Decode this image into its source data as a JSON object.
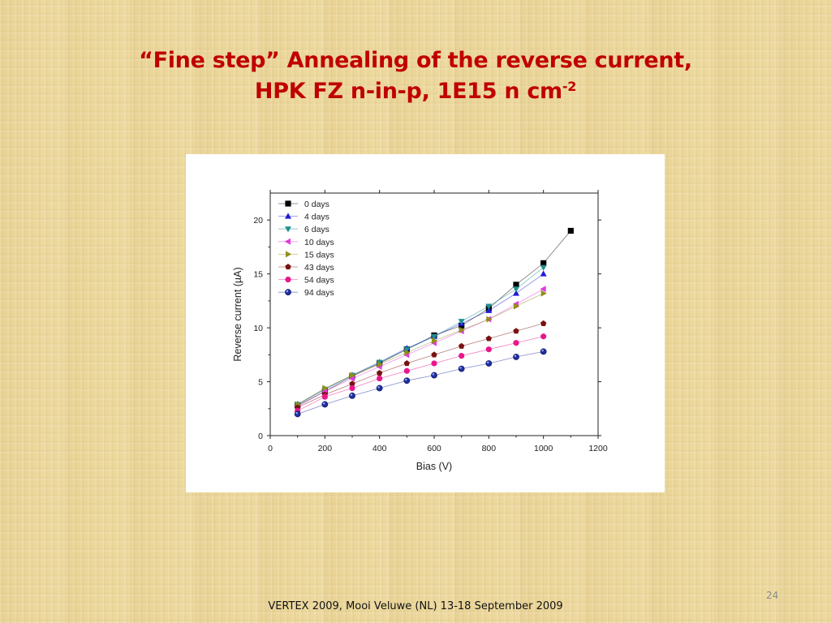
{
  "slide": {
    "title_line1": "“Fine step” Annealing of the reverse current,",
    "title_line2": "HPK FZ n-in-p, 1E15 n cm",
    "title_sup": "-2",
    "slide_number": "24",
    "footer": "VERTEX 2009, Mooi Veluwe (NL) 13-18 September 2009"
  },
  "chart_data": {
    "type": "scatter",
    "xlabel": "Bias (V)",
    "ylabel": "Reverse current (µA)",
    "xlim": [
      0,
      1200
    ],
    "ylim": [
      0,
      22.5
    ],
    "xticks": [
      0,
      200,
      400,
      600,
      800,
      1000,
      1200
    ],
    "yticks": [
      0,
      5,
      10,
      15,
      20
    ],
    "grid": false,
    "legend_position": "top-left",
    "series": [
      {
        "name": "0 days",
        "marker": "square",
        "color": "#000000",
        "x": [
          100,
          200,
          300,
          400,
          500,
          600,
          700,
          800,
          900,
          1000,
          1100
        ],
        "y": [
          2.8,
          4.1,
          5.5,
          6.7,
          8.0,
          9.3,
          10.2,
          11.8,
          14.0,
          16.0,
          19.0
        ]
      },
      {
        "name": "4 days",
        "marker": "triangle-up",
        "color": "#1c1cd6",
        "x": [
          100,
          200,
          300,
          400,
          500,
          600,
          700,
          800,
          900,
          1000
        ],
        "y": [
          2.9,
          4.3,
          5.6,
          6.8,
          8.1,
          9.2,
          10.4,
          11.6,
          13.2,
          15.0
        ]
      },
      {
        "name": "6 days",
        "marker": "triangle-down",
        "color": "#1f8f8f",
        "x": [
          100,
          200,
          300,
          400,
          500,
          600,
          700,
          800,
          900,
          1000
        ],
        "y": [
          2.9,
          4.3,
          5.6,
          6.8,
          8.0,
          9.2,
          10.6,
          12.0,
          13.6,
          15.6
        ]
      },
      {
        "name": "10 days",
        "marker": "triangle-left",
        "color": "#e23ae0",
        "x": [
          100,
          200,
          300,
          400,
          500,
          600,
          700,
          800,
          900,
          1000
        ],
        "y": [
          2.7,
          4.1,
          5.3,
          6.4,
          7.5,
          8.6,
          9.7,
          10.8,
          12.2,
          13.6
        ]
      },
      {
        "name": "15 days",
        "marker": "triangle-right",
        "color": "#8f8f1c",
        "x": [
          100,
          200,
          300,
          400,
          500,
          600,
          700,
          800,
          900,
          1000
        ],
        "y": [
          2.9,
          4.4,
          5.6,
          6.6,
          7.7,
          8.8,
          9.8,
          10.8,
          12.0,
          13.2
        ]
      },
      {
        "name": "43 days",
        "marker": "pentagon",
        "color": "#7a1212",
        "x": [
          100,
          200,
          300,
          400,
          500,
          600,
          700,
          800,
          900,
          1000
        ],
        "y": [
          2.6,
          3.8,
          4.8,
          5.8,
          6.7,
          7.5,
          8.3,
          9.0,
          9.7,
          10.4
        ]
      },
      {
        "name": "54 days",
        "marker": "circle",
        "color": "#e8178c",
        "x": [
          100,
          200,
          300,
          400,
          500,
          600,
          700,
          800,
          900,
          1000
        ],
        "y": [
          2.3,
          3.6,
          4.4,
          5.3,
          6.0,
          6.7,
          7.4,
          8.0,
          8.6,
          9.2
        ]
      },
      {
        "name": "94 days",
        "marker": "sphere",
        "color": "#1f2f9e",
        "x": [
          100,
          200,
          300,
          400,
          500,
          600,
          700,
          800,
          900,
          1000
        ],
        "y": [
          2.0,
          2.9,
          3.7,
          4.4,
          5.1,
          5.6,
          6.2,
          6.7,
          7.3,
          7.8
        ]
      }
    ]
  }
}
